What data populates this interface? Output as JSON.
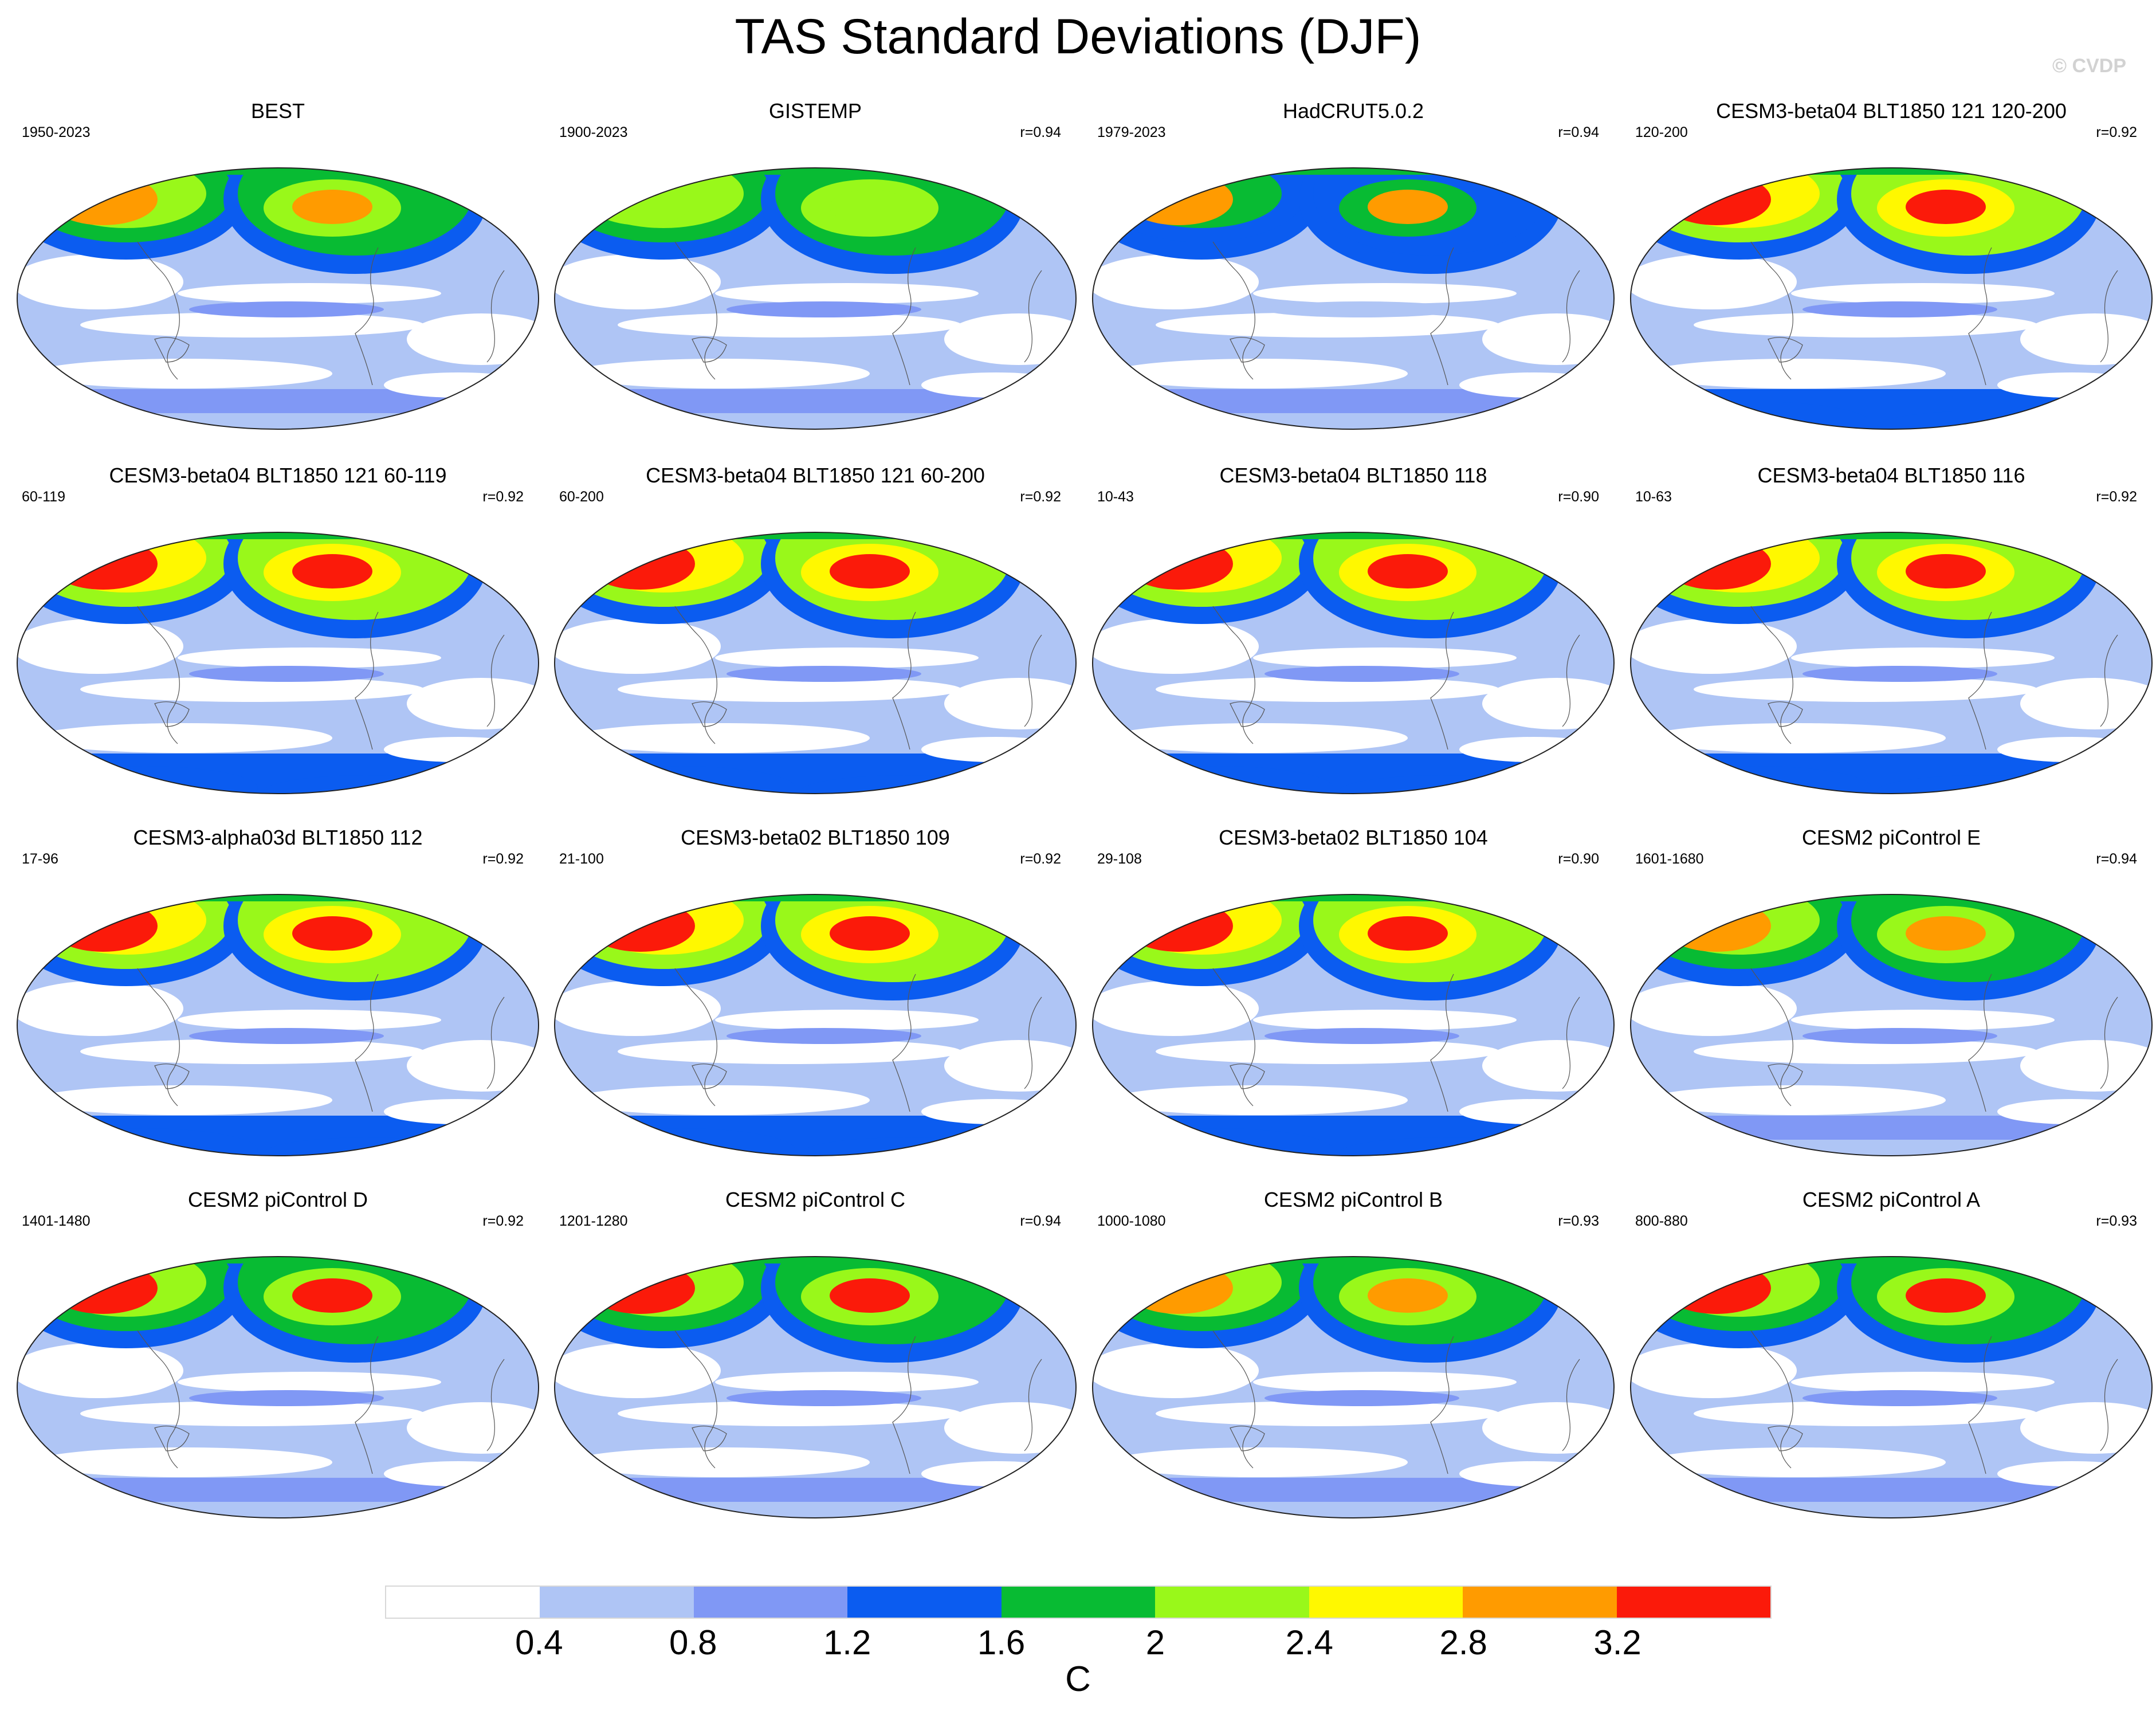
{
  "title": "TAS Standard Deviations (DJF)",
  "watermark": "© CVDP",
  "colors": [
    "#ffffff",
    "#afc5f5",
    "#8098f5",
    "#0b5cf0",
    "#08bb33",
    "#99f81a",
    "#fff800",
    "#ff9b00",
    "#fb1a0a"
  ],
  "colorbar": {
    "tick_labels": [
      "0.4",
      "0.8",
      "1.2",
      "1.6",
      "2",
      "2.4",
      "2.8",
      "3.2"
    ],
    "unit": "C"
  },
  "panels": [
    {
      "title": "BEST",
      "period": "1950-2023",
      "corr": "",
      "zones": {
        "north": 7,
        "mid": 4,
        "tropics": 1,
        "south": 1,
        "antarctic": 2
      }
    },
    {
      "title": "GISTEMP",
      "period": "1900-2023",
      "corr": "r=0.94",
      "zones": {
        "north": 5,
        "mid": 4,
        "tropics": 1,
        "south": 1,
        "antarctic": 1
      }
    },
    {
      "title": "HadCRUT5.0.2",
      "period": "1979-2023",
      "corr": "r=0.94",
      "zones": {
        "north": 7,
        "mid": 3,
        "tropics": 0,
        "south": 1,
        "antarctic": 1
      }
    },
    {
      "title": "CESM3-beta04 BLT1850 121 120-200",
      "period": "120-200",
      "corr": "r=0.92",
      "zones": {
        "north": 8,
        "mid": 5,
        "tropics": 1,
        "south": 1,
        "antarctic": 3
      }
    },
    {
      "title": "CESM3-beta04 BLT1850 121 60-119",
      "period": "60-119",
      "corr": "r=0.92",
      "zones": {
        "north": 8,
        "mid": 5,
        "tropics": 1,
        "south": 1,
        "antarctic": 3
      }
    },
    {
      "title": "CESM3-beta04 BLT1850 121 60-200",
      "period": "60-200",
      "corr": "r=0.92",
      "zones": {
        "north": 8,
        "mid": 5,
        "tropics": 1,
        "south": 1,
        "antarctic": 3
      }
    },
    {
      "title": "CESM3-beta04 BLT1850 118",
      "period": "10-43",
      "corr": "r=0.90",
      "zones": {
        "north": 8,
        "mid": 5,
        "tropics": 1,
        "south": 1,
        "antarctic": 3
      }
    },
    {
      "title": "CESM3-beta04 BLT1850 116",
      "period": "10-63",
      "corr": "r=0.92",
      "zones": {
        "north": 8,
        "mid": 5,
        "tropics": 1,
        "south": 1,
        "antarctic": 3
      }
    },
    {
      "title": "CESM3-alpha03d BLT1850 112",
      "period": "17-96",
      "corr": "r=0.92",
      "zones": {
        "north": 8,
        "mid": 5,
        "tropics": 1,
        "south": 1,
        "antarctic": 3
      }
    },
    {
      "title": "CESM3-beta02 BLT1850 109",
      "period": "21-100",
      "corr": "r=0.92",
      "zones": {
        "north": 8,
        "mid": 5,
        "tropics": 1,
        "south": 1,
        "antarctic": 3
      }
    },
    {
      "title": "CESM3-beta02 BLT1850 104",
      "period": "29-108",
      "corr": "r=0.90",
      "zones": {
        "north": 8,
        "mid": 5,
        "tropics": 1,
        "south": 1,
        "antarctic": 3
      }
    },
    {
      "title": "CESM2 piControl E",
      "period": "1601-1680",
      "corr": "r=0.94",
      "zones": {
        "north": 7,
        "mid": 4,
        "tropics": 1,
        "south": 1,
        "antarctic": 2
      }
    },
    {
      "title": "CESM2 piControl D",
      "period": "1401-1480",
      "corr": "r=0.92",
      "zones": {
        "north": 8,
        "mid": 4,
        "tropics": 1,
        "south": 1,
        "antarctic": 2
      }
    },
    {
      "title": "CESM2 piControl C",
      "period": "1201-1280",
      "corr": "r=0.94",
      "zones": {
        "north": 8,
        "mid": 4,
        "tropics": 1,
        "south": 1,
        "antarctic": 2
      }
    },
    {
      "title": "CESM2 piControl B",
      "period": "1000-1080",
      "corr": "r=0.93",
      "zones": {
        "north": 7,
        "mid": 4,
        "tropics": 1,
        "south": 1,
        "antarctic": 2
      }
    },
    {
      "title": "CESM2 piControl A",
      "period": "800-880",
      "corr": "r=0.93",
      "zones": {
        "north": 8,
        "mid": 4,
        "tropics": 1,
        "south": 1,
        "antarctic": 2
      }
    }
  ]
}
